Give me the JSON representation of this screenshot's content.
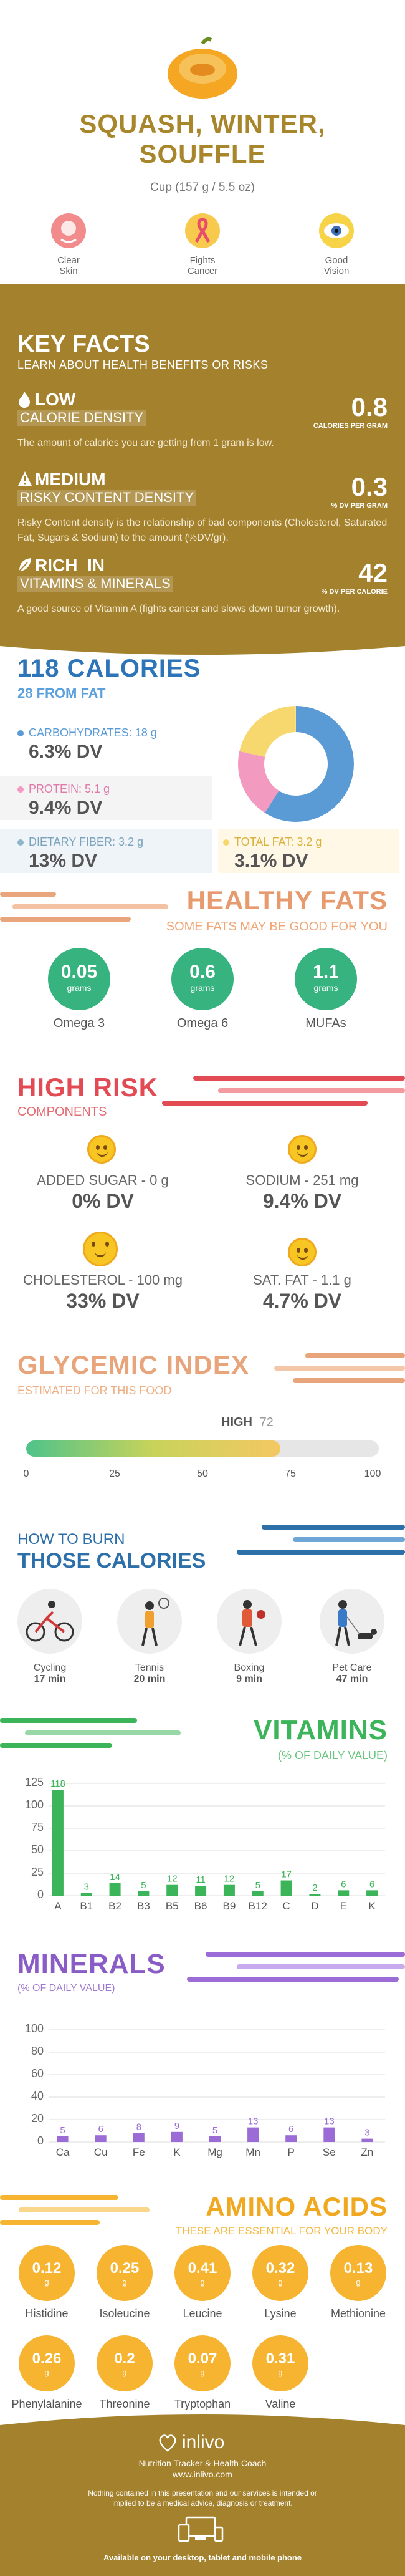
{
  "header": {
    "title_line1": "SQUASH, WINTER,",
    "title_line2": "SOUFFLE",
    "serving": "Cup (157 g / 5.5 oz)",
    "benefits": [
      {
        "label1": "Clear",
        "label2": "Skin"
      },
      {
        "label1": "Fights",
        "label2": "Cancer"
      },
      {
        "label1": "Good",
        "label2": "Vision"
      }
    ]
  },
  "key_facts": {
    "title": "KEY FACTS",
    "subtitle": "LEARN ABOUT HEALTH BENEFITS OR RISKS",
    "items": [
      {
        "level": "LOW",
        "label": "CALORIE DENSITY",
        "value": "0.8",
        "unit": "CALORIES PER GRAM",
        "desc": "The amount of calories you are getting from 1 gram is low."
      },
      {
        "level": "MEDIUM",
        "label": "RISKY CONTENT DENSITY",
        "value": "0.3",
        "unit": "% DV PER GRAM",
        "desc": "Risky Content density is the relationship of bad components (Cholesterol, Saturated Fat, Sugars & Sodium) to the amount (%DV/gr)."
      },
      {
        "level": "RICH  IN",
        "label": "VITAMINS & MINERALS",
        "value": "42",
        "unit": "% DV PER CALORIE",
        "desc": "A good source of Vitamin A (fights cancer and slows down tumor growth)."
      }
    ]
  },
  "calories": {
    "title": "118 CALORIES",
    "subtitle": "28 FROM FAT",
    "carbs_label": "CARBOHYDRATES: 18 g",
    "carbs_dv": "6.3% DV",
    "protein_label": "PROTEIN: 5.1 g",
    "protein_dv": "9.4% DV",
    "fiber_label": "DIETARY FIBER: 3.2 g",
    "fiber_dv": "13% DV",
    "fat_label": "TOTAL FAT: 3.2 g",
    "fat_dv": "3.1% DV",
    "donut_colors": {
      "carbs": "#5b9bd5",
      "protein": "#f39ac1",
      "fat": "#f7d86e"
    }
  },
  "healthy_fats": {
    "title": "HEALTHY FATS",
    "subtitle": "SOME FATS MAY BE GOOD FOR YOU",
    "items": [
      {
        "value": "0.05",
        "unit": "grams",
        "label": "Omega 3"
      },
      {
        "value": "0.6",
        "unit": "grams",
        "label": "Omega 6"
      },
      {
        "value": "1.1",
        "unit": "grams",
        "label": "MUFAs"
      }
    ]
  },
  "high_risk": {
    "title": "HIGH RISK",
    "subtitle": "COMPONENTS",
    "items": [
      {
        "label": "ADDED SUGAR - 0 g",
        "dv": "0% DV"
      },
      {
        "label": "SODIUM - 251 mg",
        "dv": "9.4% DV"
      },
      {
        "label": "CHOLESTEROL - 100 mg",
        "dv": "33% DV"
      },
      {
        "label": "SAT. FAT - 1.1 g",
        "dv": "4.7% DV"
      }
    ]
  },
  "glycemic": {
    "title": "GLYCEMIC INDEX",
    "subtitle": "ESTIMATED FOR THIS FOOD",
    "level": "HIGH",
    "value": "72",
    "ticks": [
      "0",
      "25",
      "50",
      "75",
      "100"
    ]
  },
  "burn": {
    "title1": "HOW TO BURN",
    "title2": "THOSE CALORIES",
    "items": [
      {
        "label": "Cycling",
        "time": "17 min"
      },
      {
        "label": "Tennis",
        "time": "20 min"
      },
      {
        "label": "Boxing",
        "time": "9 min"
      },
      {
        "label": "Pet Care",
        "time": "47 min"
      }
    ]
  },
  "vitamins": {
    "title": "VITAMINS",
    "subtitle": "(% OF DAILY VALUE)",
    "yticks": [
      "125",
      "100",
      "75",
      "50",
      "25",
      "0"
    ]
  },
  "minerals": {
    "title": "MINERALS",
    "subtitle": "(% OF DAILY VALUE)",
    "yticks": [
      "100",
      "80",
      "60",
      "40",
      "20",
      "0"
    ]
  },
  "chart_data": [
    {
      "type": "bar",
      "title": "VITAMINS",
      "subtitle": "(% OF DAILY VALUE)",
      "categories": [
        "A",
        "B1",
        "B2",
        "B3",
        "B5",
        "B6",
        "B9",
        "B12",
        "C",
        "D",
        "E",
        "K"
      ],
      "values": [
        118,
        3,
        14,
        5,
        12,
        11,
        12,
        5,
        17,
        2,
        6,
        6
      ],
      "ylim": [
        0,
        125
      ],
      "color": "#3cb45a"
    },
    {
      "type": "bar",
      "title": "MINERALS",
      "subtitle": "(% OF DAILY VALUE)",
      "categories": [
        "Ca",
        "Cu",
        "Fe",
        "K",
        "Mg",
        "Mn",
        "P",
        "Se",
        "Zn"
      ],
      "values": [
        5,
        6,
        8,
        9,
        5,
        13,
        6,
        13,
        3
      ],
      "ylim": [
        0,
        100
      ],
      "color": "#9b6cd6"
    }
  ],
  "amino": {
    "title": "AMINO ACIDS",
    "subtitle": "THESE ARE ESSENTIAL FOR YOUR BODY",
    "items": [
      {
        "value": "0.12",
        "unit": "g",
        "label": "Histidine"
      },
      {
        "value": "0.25",
        "unit": "g",
        "label": "Isoleucine"
      },
      {
        "value": "0.41",
        "unit": "g",
        "label": "Leucine"
      },
      {
        "value": "0.32",
        "unit": "g",
        "label": "Lysine"
      },
      {
        "value": "0.13",
        "unit": "g",
        "label": "Methionine"
      },
      {
        "value": "0.26",
        "unit": "g",
        "label": "Phenylalanine"
      },
      {
        "value": "0.2",
        "unit": "g",
        "label": "Threonine"
      },
      {
        "value": "0.07",
        "unit": "g",
        "label": "Tryptophan"
      },
      {
        "value": "0.31",
        "unit": "g",
        "label": "Valine"
      }
    ]
  },
  "footer": {
    "brand": "inlivo",
    "tagline": "Nutrition Tracker & Health Coach",
    "url": "www.inlivo.com",
    "disclaimer": "Nothing contained in this presentation and our services is intended or implied to be a medical advice, diagnosis or treatment.",
    "available": "Available on your desktop, tablet and mobile phone"
  }
}
